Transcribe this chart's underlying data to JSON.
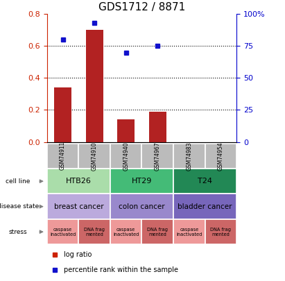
{
  "title": "GDS1712 / 8871",
  "samples": [
    "GSM74911",
    "GSM74910",
    "GSM74940",
    "GSM74967",
    "GSM74983",
    "GSM74954"
  ],
  "log_ratio": [
    0.34,
    0.7,
    0.14,
    0.19,
    0,
    0
  ],
  "percentile_rank": [
    80,
    93,
    70,
    75,
    null,
    null
  ],
  "ylim_left": [
    0,
    0.8
  ],
  "ylim_right": [
    0,
    100
  ],
  "yticks_left": [
    0,
    0.2,
    0.4,
    0.6,
    0.8
  ],
  "yticks_right": [
    0,
    25,
    50,
    75,
    100
  ],
  "ytick_labels_right": [
    "0",
    "25",
    "50",
    "75",
    "100%"
  ],
  "bar_color": "#B22222",
  "dot_color": "#1111CC",
  "cell_line_groups": [
    {
      "label": "HTB26",
      "start": 0,
      "end": 2,
      "color": "#AADDAA"
    },
    {
      "label": "HT29",
      "start": 2,
      "end": 4,
      "color": "#44BB77"
    },
    {
      "label": "T24",
      "start": 4,
      "end": 6,
      "color": "#228855"
    }
  ],
  "disease_groups": [
    {
      "label": "breast cancer",
      "start": 0,
      "end": 2,
      "color": "#BBAADD"
    },
    {
      "label": "colon cancer",
      "start": 2,
      "end": 4,
      "color": "#9988CC"
    },
    {
      "label": "bladder cancer",
      "start": 4,
      "end": 6,
      "color": "#7766BB"
    }
  ],
  "stress_items": [
    {
      "col": 0,
      "label": "caspase\ninactivated",
      "color": "#EE9999"
    },
    {
      "col": 1,
      "label": "DNA frag\nmented",
      "color": "#CC6666"
    },
    {
      "col": 2,
      "label": "caspase\ninactivated",
      "color": "#EE9999"
    },
    {
      "col": 3,
      "label": "DNA frag\nmented",
      "color": "#CC6666"
    },
    {
      "col": 4,
      "label": "caspase\ninactivated",
      "color": "#EE9999"
    },
    {
      "col": 5,
      "label": "DNA frag\nmented",
      "color": "#CC6666"
    }
  ],
  "sample_box_color": "#BBBBBB",
  "left_tick_color": "#CC2200",
  "right_tick_color": "#0000CC",
  "legend_bar_color": "#CC2200",
  "legend_dot_color": "#1111CC"
}
